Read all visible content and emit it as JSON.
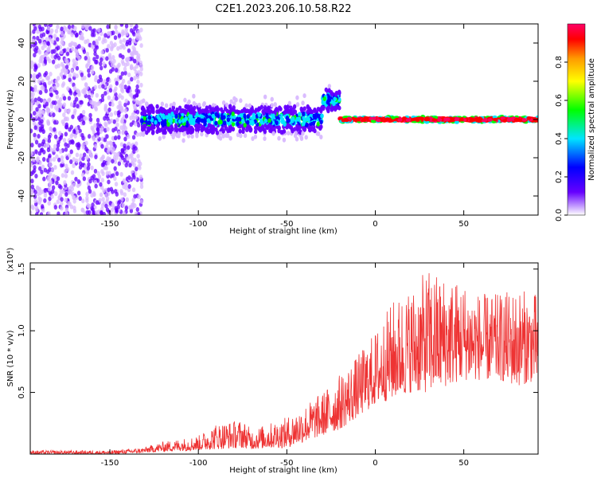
{
  "title": "C2E1.2023.206.10.58.R22",
  "chart_data": [
    {
      "type": "heatmap",
      "xlabel": "Height of straight line (km)",
      "ylabel": "Frequency (Hz)",
      "xlim": [
        -195,
        92
      ],
      "ylim": [
        -50,
        50
      ],
      "xticks": [
        -150,
        -100,
        -50,
        0,
        50
      ],
      "yticks": [
        -40,
        -20,
        0,
        20,
        40
      ],
      "colorbar": {
        "label": "Normalized spectral amplitude",
        "range": [
          0,
          1
        ],
        "ticks": [
          0.0,
          0.2,
          0.4,
          0.6,
          0.8
        ],
        "colors": [
          "#ffffff",
          "#6600ff",
          "#0000ff",
          "#00e5ff",
          "#00ff00",
          "#ffff00",
          "#ff9900",
          "#ff0000",
          "#ff0066"
        ]
      },
      "regions": [
        {
          "x": [
            -195,
            -132
          ],
          "freq_center": 0,
          "freq_spread": 50,
          "amplitude": 0.1
        },
        {
          "x": [
            -132,
            -30
          ],
          "freq_center": 0,
          "freq_spread": 8,
          "amplitude": 0.3
        },
        {
          "x": [
            -30,
            -20
          ],
          "freq_center": 10,
          "freq_spread": 5,
          "amplitude": 0.35
        },
        {
          "x": [
            -20,
            92
          ],
          "freq_center": 0,
          "freq_spread": 2,
          "amplitude": 0.95
        }
      ]
    },
    {
      "type": "line",
      "xlabel": "Height of straight line (km)",
      "ylabel": "SNR (10 * v/v)",
      "multiplier": "(x10⁴)",
      "xlim": [
        -195,
        92
      ],
      "ylim": [
        0,
        1.55
      ],
      "xticks": [
        -150,
        -100,
        -50,
        0,
        50
      ],
      "yticks": [
        0.5,
        1.0,
        1.5
      ],
      "color": "#ee3333",
      "envelope": {
        "x": [
          -195,
          -150,
          -132,
          -120,
          -100,
          -90,
          -75,
          -70,
          -60,
          -50,
          -40,
          -30,
          -20,
          -10,
          0,
          10,
          20,
          30,
          40,
          50,
          60,
          70,
          80,
          92
        ],
        "min": [
          0.0,
          0.0,
          0.01,
          0.02,
          0.03,
          0.04,
          0.05,
          0.04,
          0.05,
          0.05,
          0.1,
          0.15,
          0.2,
          0.3,
          0.4,
          0.45,
          0.5,
          0.5,
          0.55,
          0.6,
          0.6,
          0.6,
          0.55,
          0.6
        ],
        "max": [
          0.03,
          0.03,
          0.05,
          0.1,
          0.15,
          0.25,
          0.28,
          0.2,
          0.25,
          0.3,
          0.4,
          0.5,
          0.65,
          0.8,
          1.0,
          1.25,
          1.35,
          1.5,
          1.45,
          1.4,
          1.3,
          1.3,
          1.35,
          1.3
        ]
      }
    }
  ]
}
